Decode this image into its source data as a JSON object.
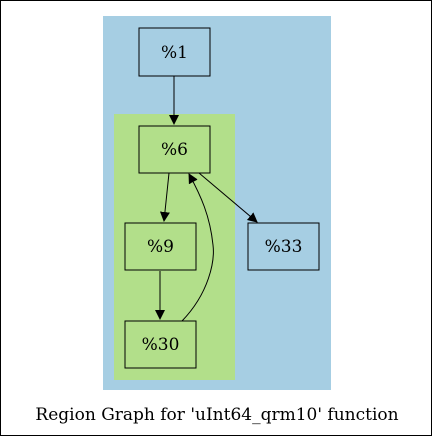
{
  "colors": {
    "outer_region": "#a6cee3",
    "inner_region": "#b2df8a",
    "stroke": "#000000",
    "background": "#ffffff"
  },
  "graph": {
    "caption": "Region Graph for 'uInt64_qrm10' function",
    "nodes": {
      "n1": "%1",
      "n6": "%6",
      "n9": "%9",
      "n30": "%30",
      "n33": "%33"
    }
  }
}
